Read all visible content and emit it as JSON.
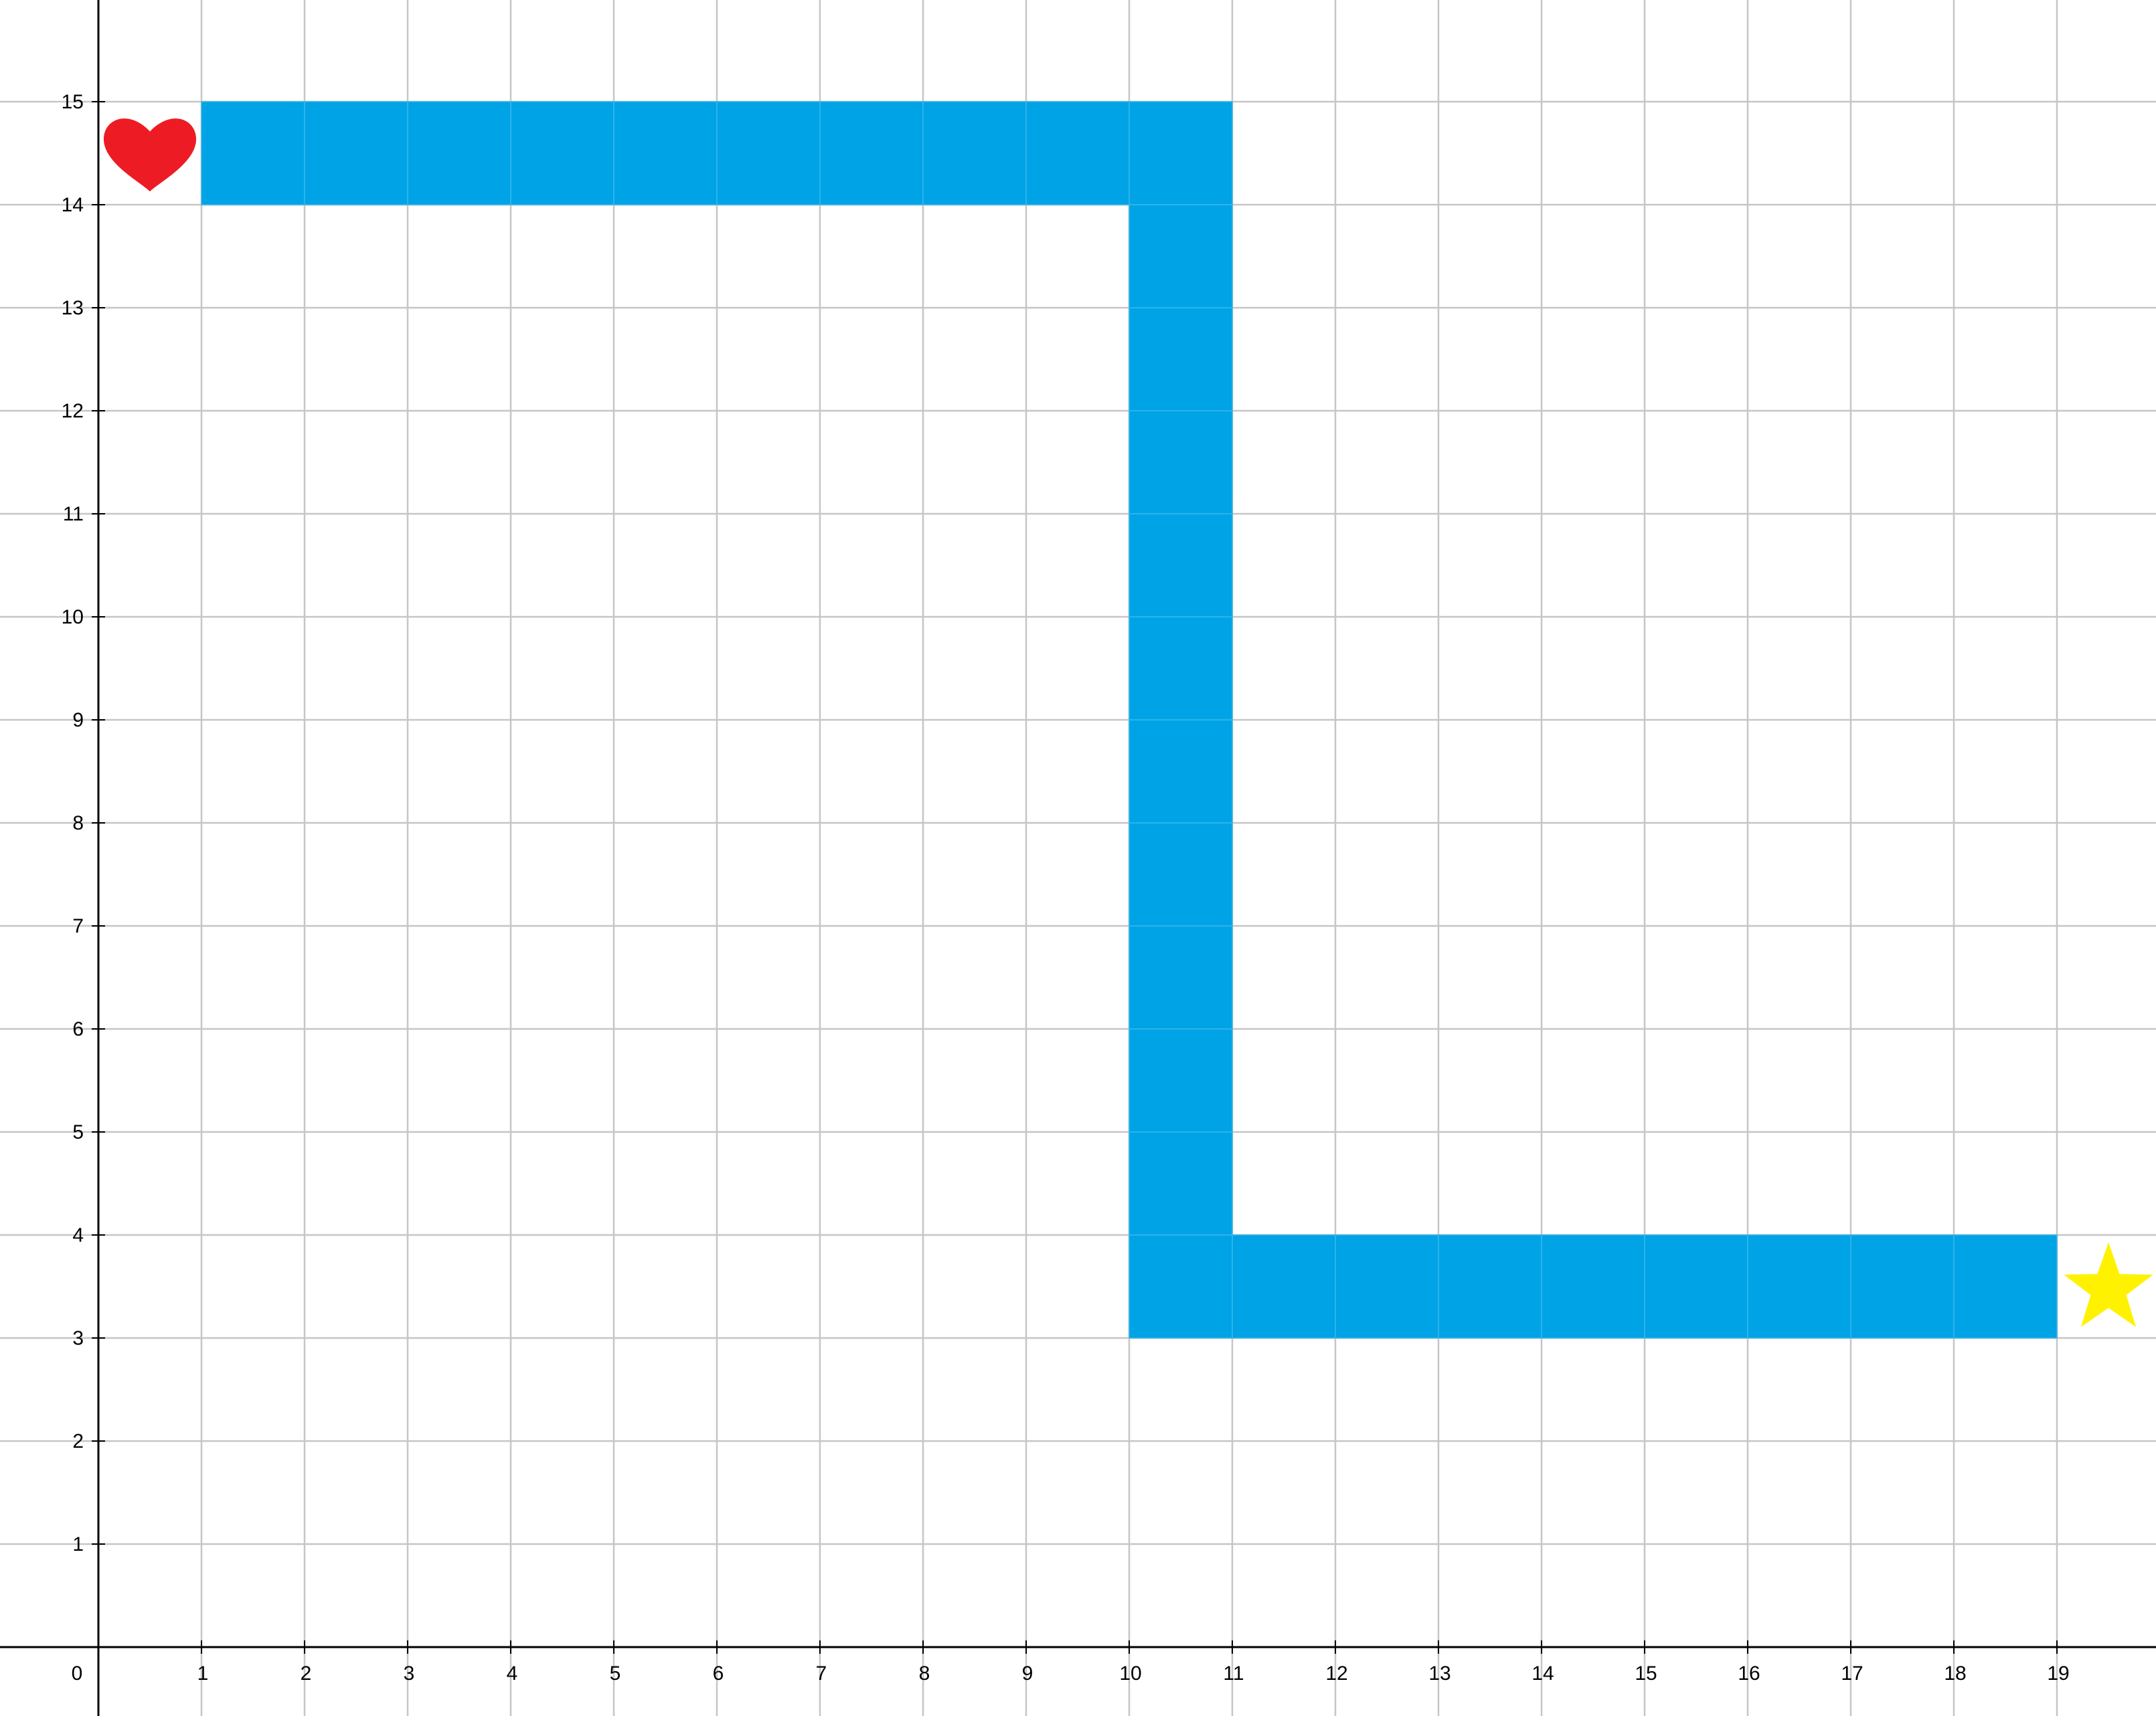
{
  "chart_data": {
    "type": "grid-path",
    "x_range": [
      0,
      20.6
    ],
    "y_range": [
      -0.65,
      16.65
    ],
    "x_ticks": [
      0,
      1,
      2,
      3,
      4,
      5,
      6,
      7,
      8,
      9,
      10,
      11,
      12,
      13,
      14,
      15,
      16,
      17,
      18,
      19
    ],
    "y_ticks": [
      1,
      2,
      3,
      4,
      5,
      6,
      7,
      8,
      9,
      10,
      11,
      12,
      13,
      14,
      15
    ],
    "x_tick_labels": [
      "0",
      "1",
      "2",
      "3",
      "4",
      "5",
      "6",
      "7",
      "8",
      "9",
      "10",
      "11",
      "12",
      "13",
      "14",
      "15",
      "16",
      "17",
      "18",
      "19"
    ],
    "y_tick_labels": [
      "1",
      "2",
      "3",
      "4",
      "5",
      "6",
      "7",
      "8",
      "9",
      "10",
      "11",
      "12",
      "13",
      "14",
      "15"
    ],
    "grid": true,
    "grid_step": 1,
    "path_color": "#00A3E6",
    "path_cells": [
      [
        1,
        14
      ],
      [
        2,
        14
      ],
      [
        3,
        14
      ],
      [
        4,
        14
      ],
      [
        5,
        14
      ],
      [
        6,
        14
      ],
      [
        7,
        14
      ],
      [
        8,
        14
      ],
      [
        9,
        14
      ],
      [
        10,
        14
      ],
      [
        10,
        13
      ],
      [
        10,
        12
      ],
      [
        10,
        11
      ],
      [
        10,
        10
      ],
      [
        10,
        9
      ],
      [
        10,
        8
      ],
      [
        10,
        7
      ],
      [
        10,
        6
      ],
      [
        10,
        5
      ],
      [
        10,
        4
      ],
      [
        10,
        3
      ],
      [
        11,
        3
      ],
      [
        12,
        3
      ],
      [
        13,
        3
      ],
      [
        14,
        3
      ],
      [
        15,
        3
      ],
      [
        16,
        3
      ],
      [
        17,
        3
      ],
      [
        18,
        3
      ]
    ],
    "markers": [
      {
        "icon": "heart-icon",
        "color": "#ED1C24",
        "x": 0.5,
        "y": 14.5
      },
      {
        "icon": "star-icon",
        "color": "#FFF200",
        "x": 19.5,
        "y": 3.5
      }
    ]
  }
}
